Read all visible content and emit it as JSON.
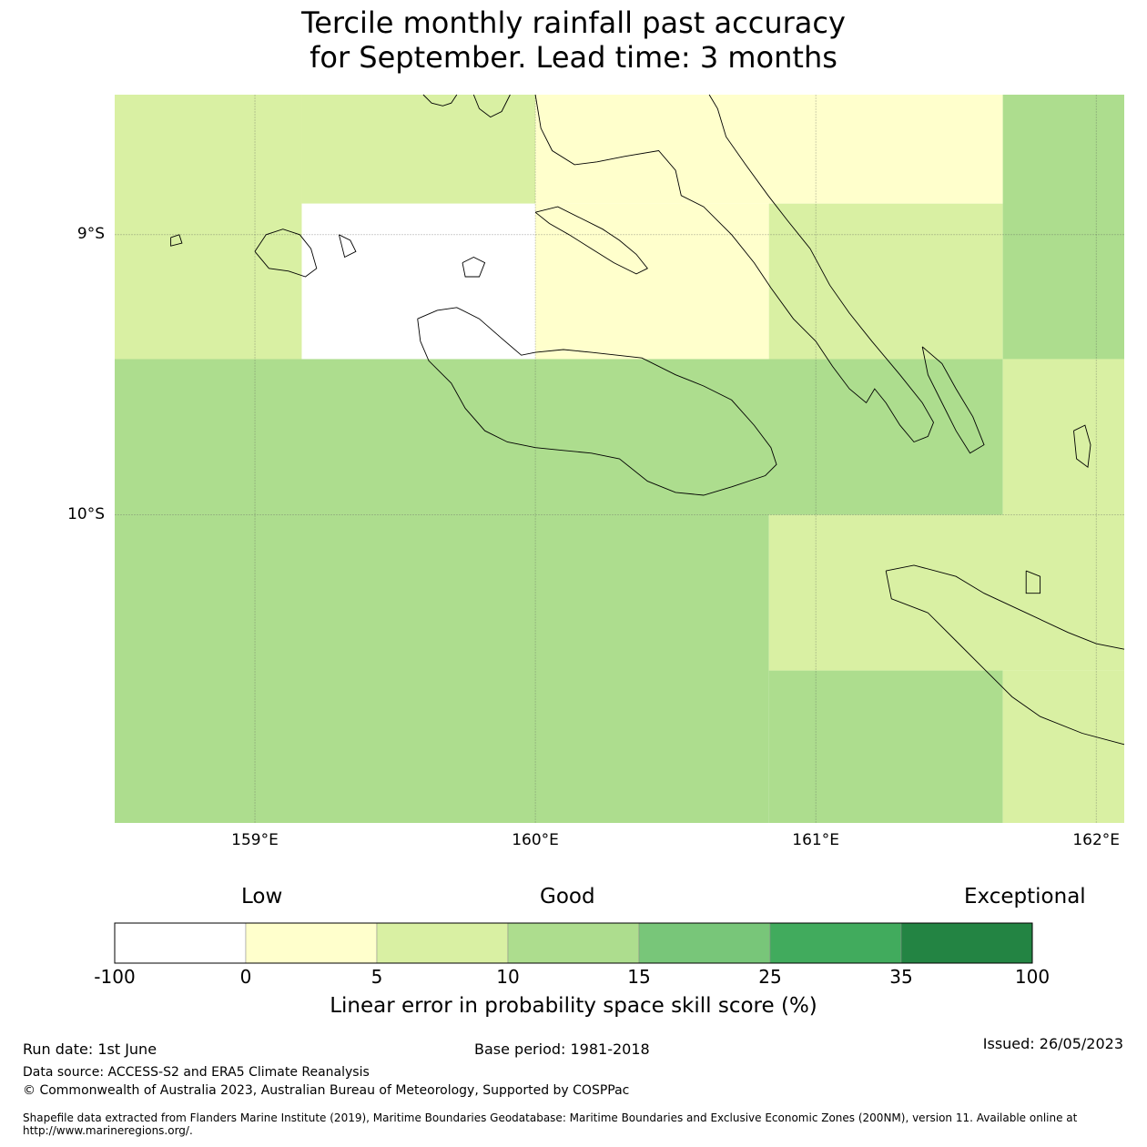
{
  "title_line1": "Tercile monthly rainfall past accuracy",
  "title_line2": "for September. Lead time: 3 months",
  "map": {
    "lon_range": [
      158.5,
      162.1
    ],
    "lat_range": [
      -11.1,
      -8.5
    ],
    "x_ticks": [
      {
        "value": 159,
        "label": "159°E"
      },
      {
        "value": 160,
        "label": "160°E"
      },
      {
        "value": 161,
        "label": "161°E"
      },
      {
        "value": 162,
        "label": "162°E"
      }
    ],
    "y_ticks": [
      {
        "value": -9,
        "label": "9°S"
      },
      {
        "value": -10,
        "label": "10°S"
      }
    ],
    "grid": true,
    "cells": [
      {
        "lon0": 158.5,
        "lon1": 159.167,
        "lat0": -9.444,
        "lat1": -8.5,
        "class": 2
      },
      {
        "lon0": 159.167,
        "lon1": 160.0,
        "lat0": -8.889,
        "lat1": -8.5,
        "class": 2
      },
      {
        "lon0": 159.167,
        "lon1": 160.0,
        "lat0": -9.444,
        "lat1": -8.889,
        "class": 0
      },
      {
        "lon0": 160.0,
        "lon1": 161.667,
        "lat0": -8.889,
        "lat1": -8.5,
        "class": 1
      },
      {
        "lon0": 160.0,
        "lon1": 160.833,
        "lat0": -9.444,
        "lat1": -8.889,
        "class": 1
      },
      {
        "lon0": 160.833,
        "lon1": 161.667,
        "lat0": -9.444,
        "lat1": -8.889,
        "class": 2
      },
      {
        "lon0": 161.667,
        "lon1": 162.1,
        "lat0": -9.444,
        "lat1": -8.5,
        "class": 3
      },
      {
        "lon0": 158.5,
        "lon1": 161.667,
        "lat0": -10.0,
        "lat1": -9.444,
        "class": 3
      },
      {
        "lon0": 161.667,
        "lon1": 162.1,
        "lat0": -10.0,
        "lat1": -9.444,
        "class": 2
      },
      {
        "lon0": 158.5,
        "lon1": 160.833,
        "lat0": -11.1,
        "lat1": -10.0,
        "class": 3
      },
      {
        "lon0": 160.833,
        "lon1": 162.1,
        "lat0": -10.556,
        "lat1": -10.0,
        "class": 2
      },
      {
        "lon0": 160.833,
        "lon1": 161.667,
        "lat0": -11.1,
        "lat1": -10.556,
        "class": 3
      },
      {
        "lon0": 161.667,
        "lon1": 162.1,
        "lat0": -11.1,
        "lat1": -10.556,
        "class": 2
      }
    ],
    "coastlines": [
      [
        [
          159.6,
          -8.5
        ],
        [
          159.63,
          -8.53
        ],
        [
          159.67,
          -8.54
        ],
        [
          159.7,
          -8.53
        ],
        [
          159.72,
          -8.5
        ]
      ],
      [
        [
          159.78,
          -8.5
        ],
        [
          159.8,
          -8.55
        ],
        [
          159.84,
          -8.58
        ],
        [
          159.88,
          -8.56
        ],
        [
          159.91,
          -8.5
        ]
      ],
      [
        [
          160.0,
          -8.5
        ],
        [
          160.02,
          -8.62
        ],
        [
          160.06,
          -8.7
        ],
        [
          160.14,
          -8.75
        ],
        [
          160.22,
          -8.74
        ],
        [
          160.32,
          -8.72
        ],
        [
          160.44,
          -8.7
        ],
        [
          160.5,
          -8.77
        ],
        [
          160.52,
          -8.86
        ],
        [
          160.6,
          -8.9
        ],
        [
          160.7,
          -9.0
        ],
        [
          160.78,
          -9.1
        ],
        [
          160.84,
          -9.19
        ],
        [
          160.92,
          -9.3
        ],
        [
          161.0,
          -9.38
        ],
        [
          161.06,
          -9.47
        ],
        [
          161.12,
          -9.55
        ],
        [
          161.18,
          -9.6
        ],
        [
          161.21,
          -9.55
        ],
        [
          161.25,
          -9.6
        ],
        [
          161.3,
          -9.68
        ],
        [
          161.35,
          -9.74
        ],
        [
          161.4,
          -9.72
        ],
        [
          161.42,
          -9.67
        ],
        [
          161.38,
          -9.6
        ],
        [
          161.3,
          -9.5
        ],
        [
          161.2,
          -9.38
        ],
        [
          161.12,
          -9.28
        ],
        [
          161.05,
          -9.18
        ],
        [
          160.98,
          -9.05
        ],
        [
          160.9,
          -8.95
        ],
        [
          160.83,
          -8.86
        ],
        [
          160.75,
          -8.75
        ],
        [
          160.68,
          -8.65
        ],
        [
          160.65,
          -8.55
        ],
        [
          160.62,
          -8.5
        ]
      ],
      [
        [
          161.38,
          -9.4
        ],
        [
          161.45,
          -9.46
        ],
        [
          161.5,
          -9.55
        ],
        [
          161.56,
          -9.65
        ],
        [
          161.6,
          -9.75
        ],
        [
          161.55,
          -9.78
        ],
        [
          161.5,
          -9.7
        ],
        [
          161.45,
          -9.6
        ],
        [
          161.4,
          -9.5
        ],
        [
          161.38,
          -9.4
        ]
      ],
      [
        [
          159.0,
          -9.06
        ],
        [
          159.04,
          -9.0
        ],
        [
          159.1,
          -8.98
        ],
        [
          159.16,
          -9.0
        ],
        [
          159.2,
          -9.05
        ],
        [
          159.22,
          -9.12
        ],
        [
          159.18,
          -9.15
        ],
        [
          159.12,
          -9.13
        ],
        [
          159.05,
          -9.12
        ],
        [
          159.0,
          -9.06
        ]
      ],
      [
        [
          159.3,
          -9.0
        ],
        [
          159.34,
          -9.02
        ],
        [
          159.36,
          -9.06
        ],
        [
          159.32,
          -9.08
        ],
        [
          159.3,
          -9.0
        ]
      ],
      [
        [
          160.0,
          -8.92
        ],
        [
          160.05,
          -8.96
        ],
        [
          160.12,
          -9.0
        ],
        [
          160.2,
          -9.05
        ],
        [
          160.28,
          -9.1
        ],
        [
          160.36,
          -9.14
        ],
        [
          160.4,
          -9.12
        ],
        [
          160.36,
          -9.07
        ],
        [
          160.3,
          -9.02
        ],
        [
          160.24,
          -8.98
        ],
        [
          160.16,
          -8.94
        ],
        [
          160.08,
          -8.9
        ],
        [
          160.0,
          -8.92
        ]
      ],
      [
        [
          159.74,
          -9.1
        ],
        [
          159.78,
          -9.08
        ],
        [
          159.82,
          -9.1
        ],
        [
          159.8,
          -9.15
        ],
        [
          159.75,
          -9.15
        ],
        [
          159.74,
          -9.1
        ]
      ],
      [
        [
          158.7,
          -9.01
        ],
        [
          158.73,
          -9.0
        ],
        [
          158.74,
          -9.03
        ],
        [
          158.7,
          -9.04
        ],
        [
          158.7,
          -9.01
        ]
      ],
      [
        [
          159.58,
          -9.3
        ],
        [
          159.65,
          -9.27
        ],
        [
          159.72,
          -9.26
        ],
        [
          159.8,
          -9.3
        ],
        [
          159.88,
          -9.37
        ],
        [
          159.95,
          -9.43
        ],
        [
          160.0,
          -9.42
        ],
        [
          160.1,
          -9.41
        ],
        [
          160.2,
          -9.42
        ],
        [
          160.38,
          -9.44
        ],
        [
          160.5,
          -9.5
        ],
        [
          160.6,
          -9.54
        ],
        [
          160.7,
          -9.59
        ],
        [
          160.78,
          -9.68
        ],
        [
          160.84,
          -9.76
        ],
        [
          160.86,
          -9.82
        ],
        [
          160.82,
          -9.86
        ],
        [
          160.7,
          -9.9
        ],
        [
          160.6,
          -9.93
        ],
        [
          160.5,
          -9.92
        ],
        [
          160.4,
          -9.88
        ],
        [
          160.3,
          -9.8
        ],
        [
          160.2,
          -9.78
        ],
        [
          160.1,
          -9.77
        ],
        [
          160.0,
          -9.76
        ],
        [
          159.9,
          -9.74
        ],
        [
          159.82,
          -9.7
        ],
        [
          159.75,
          -9.62
        ],
        [
          159.7,
          -9.53
        ],
        [
          159.62,
          -9.45
        ],
        [
          159.59,
          -9.38
        ],
        [
          159.58,
          -9.3
        ]
      ],
      [
        [
          161.92,
          -9.7
        ],
        [
          161.96,
          -9.68
        ],
        [
          161.98,
          -9.75
        ],
        [
          161.97,
          -9.83
        ],
        [
          161.93,
          -9.8
        ],
        [
          161.92,
          -9.7
        ]
      ],
      [
        [
          161.75,
          -10.2
        ],
        [
          161.8,
          -10.22
        ],
        [
          161.8,
          -10.28
        ],
        [
          161.75,
          -10.28
        ],
        [
          161.75,
          -10.2
        ]
      ],
      [
        [
          161.25,
          -10.2
        ],
        [
          161.35,
          -10.18
        ],
        [
          161.5,
          -10.22
        ],
        [
          161.6,
          -10.28
        ],
        [
          161.75,
          -10.35
        ],
        [
          161.9,
          -10.42
        ],
        [
          162.0,
          -10.46
        ],
        [
          162.1,
          -10.48
        ]
      ],
      [
        [
          161.25,
          -10.2
        ],
        [
          161.27,
          -10.3
        ],
        [
          161.4,
          -10.35
        ],
        [
          161.5,
          -10.45
        ],
        [
          161.6,
          -10.55
        ],
        [
          161.7,
          -10.65
        ],
        [
          161.8,
          -10.72
        ],
        [
          161.95,
          -10.78
        ],
        [
          162.1,
          -10.82
        ]
      ]
    ]
  },
  "colorbar": {
    "categories": {
      "low": "Low",
      "good": "Good",
      "exceptional": "Exceptional"
    },
    "ticks": [
      "-100",
      "0",
      "5",
      "10",
      "15",
      "25",
      "35",
      "100"
    ],
    "colors": [
      "#ffffff",
      "#ffffcc",
      "#d9f0a3",
      "#addd8e",
      "#78c679",
      "#41ab5d",
      "#238443"
    ],
    "label": "Linear error in probability space skill score (%)"
  },
  "footer": {
    "run_date": "Run date: 1st June",
    "base_period": "Base period: 1981-2018",
    "issued": "Issued: 26/05/2023",
    "data_source": "Data source: ACCESS-S2 and ERA5 Climate Reanalysis",
    "copyright": "© Commonwealth of Australia 2023, Australian Bureau of Meteorology, Supported by COSPPac",
    "shapefile": "Shapefile data extracted from Flanders Marine Institute (2019), Maritime Boundaries Geodatabase: Maritime Boundaries and Exclusive Economic Zones (200NM), version 11. Available online at http://www.marineregions.org/."
  }
}
